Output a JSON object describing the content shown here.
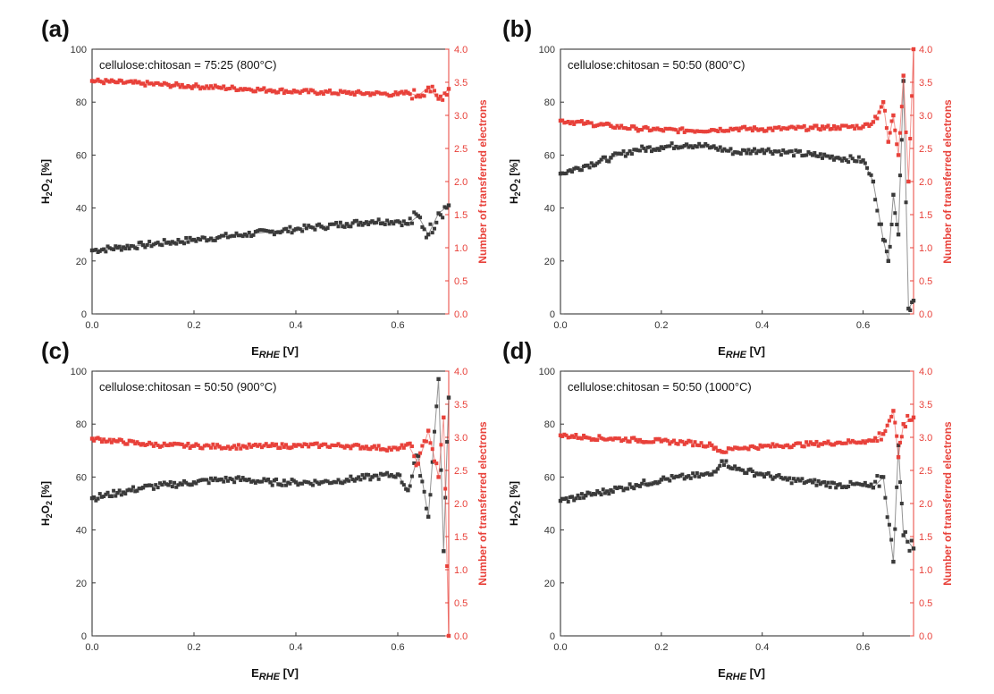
{
  "chart_data": [
    {
      "type": "scatter",
      "panel_label": "(a)",
      "annotation": "cellulose:chitosan = 75:25 (800°C)",
      "xlabel_main": "E",
      "xlabel_sub": "RHE",
      "xlabel_unit": " [V]",
      "ylabel_left_main": "H",
      "ylabel_left_sub1": "2",
      "ylabel_left_mid": "O",
      "ylabel_left_sub2": "2",
      "ylabel_left_unit": " [%]",
      "ylabel_right": "Number of transferred electrons",
      "xlim": [
        0.0,
        0.7
      ],
      "ylim_left": [
        0,
        100
      ],
      "ylim_right": [
        0.0,
        4.0
      ],
      "x_ticks": [
        "0.0",
        "0.2",
        "0.4",
        "0.6"
      ],
      "y_left_ticks": [
        "0",
        "20",
        "40",
        "60",
        "80",
        "100"
      ],
      "y_right_ticks": [
        "0.0",
        "0.5",
        "1.0",
        "1.5",
        "2.0",
        "2.5",
        "3.0",
        "3.5",
        "4.0"
      ],
      "series": [
        {
          "name": "H2O2 [%]",
          "axis": "left",
          "color": "#3a3a3a",
          "x": [
            0.0,
            0.05,
            0.1,
            0.15,
            0.2,
            0.25,
            0.3,
            0.35,
            0.4,
            0.45,
            0.5,
            0.55,
            0.6,
            0.62,
            0.64,
            0.66,
            0.68,
            0.7
          ],
          "y": [
            24,
            25,
            26,
            27,
            28,
            29,
            30,
            31,
            32,
            33,
            34,
            35,
            35,
            34,
            37,
            30,
            38,
            41
          ]
        },
        {
          "name": "Number of transferred electrons",
          "axis": "right",
          "color": "#e8413a",
          "x": [
            0.0,
            0.05,
            0.1,
            0.15,
            0.2,
            0.25,
            0.3,
            0.35,
            0.4,
            0.45,
            0.5,
            0.55,
            0.6,
            0.62,
            0.64,
            0.66,
            0.68,
            0.7
          ],
          "y": [
            3.52,
            3.5,
            3.48,
            3.46,
            3.44,
            3.42,
            3.4,
            3.38,
            3.36,
            3.35,
            3.34,
            3.33,
            3.32,
            3.34,
            3.3,
            3.42,
            3.25,
            3.4
          ]
        }
      ]
    },
    {
      "type": "scatter",
      "panel_label": "(b)",
      "annotation": "cellulose:chitosan = 50:50 (800°C)",
      "xlabel_main": "E",
      "xlabel_sub": "RHE",
      "xlabel_unit": " [V]",
      "ylabel_left_main": "H",
      "ylabel_left_sub1": "2",
      "ylabel_left_mid": "O",
      "ylabel_left_sub2": "2",
      "ylabel_left_unit": " [%]",
      "ylabel_right": "Number of transferred electrons",
      "xlim": [
        0.0,
        0.7
      ],
      "ylim_left": [
        0,
        100
      ],
      "ylim_right": [
        0.0,
        4.0
      ],
      "x_ticks": [
        "0.0",
        "0.2",
        "0.4",
        "0.6"
      ],
      "y_left_ticks": [
        "0",
        "20",
        "40",
        "60",
        "80",
        "100"
      ],
      "y_right_ticks": [
        "0.0",
        "0.5",
        "1.0",
        "1.5",
        "2.0",
        "2.5",
        "3.0",
        "3.5",
        "4.0"
      ],
      "series": [
        {
          "name": "H2O2 [%]",
          "axis": "left",
          "color": "#3a3a3a",
          "x": [
            0.0,
            0.05,
            0.1,
            0.15,
            0.2,
            0.25,
            0.3,
            0.35,
            0.4,
            0.45,
            0.5,
            0.55,
            0.6,
            0.62,
            0.64,
            0.65,
            0.66,
            0.67,
            0.68,
            0.69,
            0.7
          ],
          "y": [
            53,
            56,
            59,
            62,
            63,
            64,
            63,
            61,
            62,
            61,
            60,
            59,
            58,
            50,
            28,
            20,
            45,
            30,
            88,
            2,
            5
          ]
        },
        {
          "name": "Number of transferred electrons",
          "axis": "right",
          "color": "#e8413a",
          "x": [
            0.0,
            0.05,
            0.1,
            0.15,
            0.2,
            0.25,
            0.3,
            0.35,
            0.4,
            0.45,
            0.5,
            0.55,
            0.6,
            0.62,
            0.64,
            0.65,
            0.66,
            0.67,
            0.68,
            0.69,
            0.7
          ],
          "y": [
            2.92,
            2.88,
            2.84,
            2.8,
            2.78,
            2.77,
            2.78,
            2.8,
            2.79,
            2.8,
            2.81,
            2.82,
            2.83,
            2.9,
            3.2,
            2.6,
            3.0,
            2.4,
            3.6,
            2.0,
            4.0
          ]
        }
      ]
    },
    {
      "type": "scatter",
      "panel_label": "(c)",
      "annotation": "cellulose:chitosan = 50:50 (900°C)",
      "xlabel_main": "E",
      "xlabel_sub": "RHE",
      "xlabel_unit": " [V]",
      "ylabel_left_main": "H",
      "ylabel_left_sub1": "2",
      "ylabel_left_mid": "O",
      "ylabel_left_sub2": "2",
      "ylabel_left_unit": " [%]",
      "ylabel_right": "Number of transferred electrons",
      "xlim": [
        0.0,
        0.7
      ],
      "ylim_left": [
        0,
        100
      ],
      "ylim_right": [
        0.0,
        4.0
      ],
      "x_ticks": [
        "0.0",
        "0.2",
        "0.4",
        "0.6"
      ],
      "y_left_ticks": [
        "0",
        "20",
        "40",
        "60",
        "80",
        "100"
      ],
      "y_right_ticks": [
        "0.0",
        "0.5",
        "1.0",
        "1.5",
        "2.0",
        "2.5",
        "3.0",
        "3.5",
        "4.0"
      ],
      "series": [
        {
          "name": "H2O2 [%]",
          "axis": "left",
          "color": "#3a3a3a",
          "x": [
            0.0,
            0.05,
            0.1,
            0.15,
            0.2,
            0.25,
            0.3,
            0.35,
            0.4,
            0.45,
            0.5,
            0.55,
            0.6,
            0.62,
            0.64,
            0.66,
            0.68,
            0.69,
            0.7
          ],
          "y": [
            52,
            54,
            56,
            57,
            58,
            59,
            59,
            58,
            58,
            58,
            59,
            60,
            61,
            55,
            68,
            45,
            97,
            32,
            90
          ]
        },
        {
          "name": "Number of transferred electrons",
          "axis": "right",
          "color": "#e8413a",
          "x": [
            0.0,
            0.05,
            0.1,
            0.15,
            0.2,
            0.25,
            0.3,
            0.35,
            0.4,
            0.45,
            0.5,
            0.55,
            0.6,
            0.62,
            0.64,
            0.66,
            0.68,
            0.69,
            0.7
          ],
          "y": [
            2.98,
            2.94,
            2.9,
            2.88,
            2.87,
            2.86,
            2.86,
            2.87,
            2.87,
            2.88,
            2.87,
            2.85,
            2.82,
            2.9,
            2.6,
            3.1,
            2.4,
            3.3,
            0.0
          ]
        }
      ]
    },
    {
      "type": "scatter",
      "panel_label": "(d)",
      "annotation": "cellulose:chitosan = 50:50 (1000°C)",
      "xlabel_main": "E",
      "xlabel_sub": "RHE",
      "xlabel_unit": " [V]",
      "ylabel_left_main": "H",
      "ylabel_left_sub1": "2",
      "ylabel_left_mid": "O",
      "ylabel_left_sub2": "2",
      "ylabel_left_unit": " [%]",
      "ylabel_right": "Number of transferred electrons",
      "xlim": [
        0.0,
        0.7
      ],
      "ylim_left": [
        0,
        100
      ],
      "ylim_right": [
        0.0,
        4.0
      ],
      "x_ticks": [
        "0.0",
        "0.2",
        "0.4",
        "0.6"
      ],
      "y_left_ticks": [
        "0",
        "20",
        "40",
        "60",
        "80",
        "100"
      ],
      "y_right_ticks": [
        "0.0",
        "0.5",
        "1.0",
        "1.5",
        "2.0",
        "2.5",
        "3.0",
        "3.5",
        "4.0"
      ],
      "series": [
        {
          "name": "H2O2 [%]",
          "axis": "left",
          "color": "#3a3a3a",
          "x": [
            0.0,
            0.05,
            0.1,
            0.15,
            0.2,
            0.25,
            0.3,
            0.32,
            0.35,
            0.4,
            0.45,
            0.5,
            0.55,
            0.6,
            0.62,
            0.64,
            0.66,
            0.67,
            0.68,
            0.7
          ],
          "y": [
            51,
            53,
            55,
            57,
            59,
            60,
            61,
            66,
            63,
            61,
            59,
            58,
            57,
            57,
            56,
            60,
            28,
            72,
            38,
            33
          ]
        },
        {
          "name": "Number of transferred electrons",
          "axis": "right",
          "color": "#e8413a",
          "x": [
            0.0,
            0.05,
            0.1,
            0.15,
            0.2,
            0.25,
            0.3,
            0.32,
            0.35,
            0.4,
            0.45,
            0.5,
            0.55,
            0.6,
            0.62,
            0.64,
            0.66,
            0.67,
            0.68,
            0.7
          ],
          "y": [
            3.03,
            3.0,
            2.98,
            2.96,
            2.94,
            2.92,
            2.88,
            2.78,
            2.84,
            2.86,
            2.88,
            2.9,
            2.92,
            2.94,
            2.95,
            3.05,
            3.4,
            2.7,
            3.2,
            3.3
          ]
        }
      ]
    }
  ]
}
